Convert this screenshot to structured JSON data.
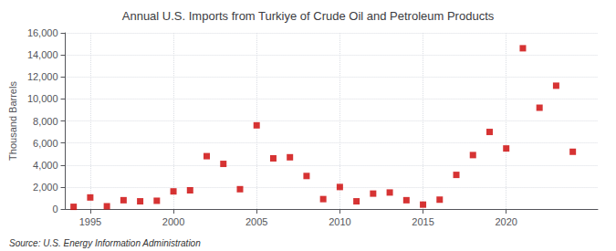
{
  "chart_data": {
    "type": "scatter",
    "title": "Annual U.S. Imports from Turkiye of Crude Oil and Petroleum Products",
    "ylabel": "Thousand Barrels",
    "annotations": [
      "Source: U.S. Energy Information Administration"
    ],
    "x": [
      1994,
      1995,
      1996,
      1997,
      1998,
      1999,
      2000,
      2001,
      2002,
      2003,
      2004,
      2005,
      2006,
      2007,
      2008,
      2009,
      2010,
      2011,
      2012,
      2013,
      2014,
      2015,
      2016,
      2017,
      2018,
      2019,
      2020,
      2021,
      2022,
      2023,
      2024
    ],
    "values": [
      200,
      1050,
      250,
      800,
      700,
      750,
      1600,
      1700,
      4800,
      4100,
      1800,
      7600,
      4600,
      4700,
      3000,
      900,
      2000,
      700,
      1400,
      1500,
      800,
      400,
      850,
      3100,
      4900,
      7000,
      5500,
      14600,
      9200,
      11200,
      5200
    ],
    "color": "#cc0000",
    "marker": "square",
    "xlim": [
      1993.5,
      2025.5
    ],
    "xticks": [
      1995,
      2000,
      2005,
      2010,
      2015,
      2020
    ],
    "ylim": [
      0,
      16000
    ],
    "yticks": [
      0,
      {
        "value": 2000,
        "label": "2,000"
      },
      {
        "value": 4000,
        "label": "4,000"
      },
      {
        "value": 6000,
        "label": "6,000"
      },
      {
        "value": 8000,
        "label": "8,000"
      },
      {
        "value": 10000,
        "label": "10,000"
      },
      {
        "value": 12000,
        "label": "12,000"
      },
      {
        "value": 14000,
        "label": "14,000"
      },
      {
        "value": 16000,
        "label": "16,000"
      }
    ],
    "grid": true
  }
}
